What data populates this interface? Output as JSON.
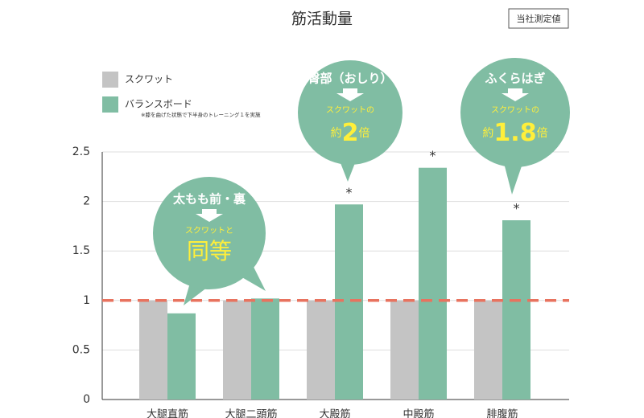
{
  "chart_data": {
    "type": "bar",
    "title": "筋活動量",
    "badge": "当社測定値",
    "categories": [
      "大腿直筋",
      "大腿二頭筋",
      "大殿筋",
      "中殿筋",
      "腓腹筋"
    ],
    "series": [
      {
        "name": "スクワット",
        "color": "#c4c4c4",
        "values": [
          1,
          1,
          1,
          1,
          1
        ]
      },
      {
        "name": "バランスボード",
        "color": "#80bda3",
        "values": [
          0.87,
          1.02,
          1.97,
          2.34,
          1.81
        ]
      }
    ],
    "legend_note": "※膝を曲げた状態で下半身のトレーニング１を実施",
    "ylim": [
      0,
      2.5
    ],
    "yticks": [
      0,
      0.5,
      1,
      1.5,
      2,
      2.5
    ],
    "grid": true,
    "reference_line": {
      "value": 1,
      "color": "#e8735f"
    },
    "significance_marks": [
      {
        "category": 2,
        "label": "*"
      },
      {
        "category": 3,
        "label": "*"
      },
      {
        "category": 4,
        "label": "*"
      }
    ],
    "callouts": [
      {
        "heading": "太もも前・裏",
        "sub": "スクワットと",
        "result": "同等"
      },
      {
        "heading": "臀部（おしり）",
        "sub": "スクワットの",
        "prefix": "約",
        "emphasis": "2",
        "suffix": "倍"
      },
      {
        "heading": "ふくらはぎ",
        "sub": "スクワットの",
        "prefix": "約",
        "emphasis": "1.8",
        "suffix": "倍"
      }
    ]
  }
}
